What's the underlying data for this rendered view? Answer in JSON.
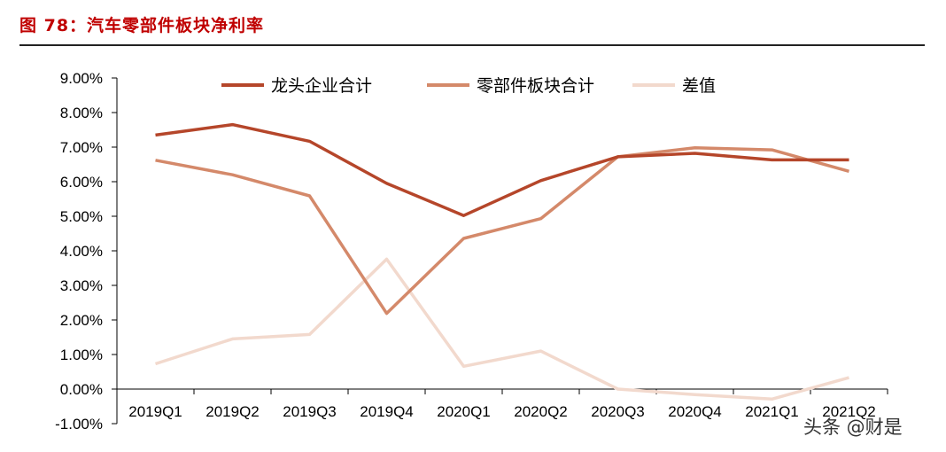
{
  "figure_title": "图 78：汽车零部件板块净利率",
  "watermark": "头条 @财是",
  "chart_data": {
    "type": "line",
    "title": "",
    "xlabel": "",
    "ylabel": "",
    "categories": [
      "2019Q1",
      "2019Q2",
      "2019Q3",
      "2019Q4",
      "2020Q1",
      "2020Q2",
      "2020Q3",
      "2020Q4",
      "2021Q1",
      "2021Q2"
    ],
    "ylim": [
      -1,
      9
    ],
    "yticks": [
      -1,
      0,
      1,
      2,
      3,
      4,
      5,
      6,
      7,
      8,
      9
    ],
    "ytick_labels": [
      "-1.00%",
      "0.00%",
      "1.00%",
      "2.00%",
      "3.00%",
      "4.00%",
      "5.00%",
      "6.00%",
      "7.00%",
      "8.00%",
      "9.00%"
    ],
    "grid": false,
    "legend_position": "top",
    "series": [
      {
        "name": "龙头企业合计",
        "color": "#b5462a",
        "values": [
          7.35,
          7.65,
          7.17,
          5.95,
          5.02,
          6.03,
          6.72,
          6.82,
          6.63,
          6.63
        ]
      },
      {
        "name": "零部件板块合计",
        "color": "#d4896a",
        "values": [
          6.62,
          6.2,
          5.59,
          2.19,
          4.36,
          4.93,
          6.72,
          6.98,
          6.92,
          6.3
        ]
      },
      {
        "name": "差值",
        "color": "#f2d9cd",
        "values": [
          0.73,
          1.45,
          1.58,
          3.76,
          0.66,
          1.1,
          0.0,
          -0.16,
          -0.29,
          0.33
        ]
      }
    ]
  }
}
